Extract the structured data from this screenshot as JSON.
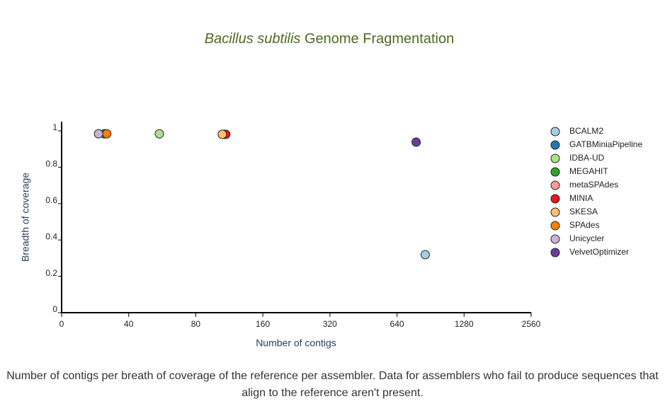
{
  "chart_data": {
    "type": "scatter",
    "title_species": "Bacillus subtilis",
    "title": "Genome Fragmentation",
    "x_label": "Number of contigs",
    "y_label": "Breadth of coverage",
    "x_log_base": 2,
    "xlim": [
      20,
      2560
    ],
    "xticks": [
      {
        "value": 20,
        "label": "0"
      },
      40,
      80,
      160,
      320,
      640,
      1280,
      2560
    ],
    "ylim": [
      0,
      1
    ],
    "yticks": [
      0,
      0.2,
      0.4,
      0.6,
      0.8,
      1
    ],
    "series": [
      {
        "name": "BCALM2",
        "color": "#a6cee3",
        "x": [
          857
        ],
        "values": [
          0.319
        ]
      },
      {
        "name": "GATBMiniaPipeline",
        "color": "#1f78b4",
        "x": [
          31.3
        ],
        "values": [
          0.984
        ]
      },
      {
        "name": "IDBA-UD",
        "color": "#b2df8a",
        "x": [
          54.9
        ],
        "values": [
          0.984
        ]
      },
      {
        "name": "MEGAHIT",
        "color": "#33a02c",
        "x": [
          31
        ],
        "values": [
          0.984
        ]
      },
      {
        "name": "metaSPAdes",
        "color": "#fb9a99",
        "x": [
          107
        ],
        "values": [
          0.981
        ]
      },
      {
        "name": "MINIA",
        "color": "#e31a1c",
        "x": [
          109.1
        ],
        "values": [
          0.981
        ]
      },
      {
        "name": "SKESA",
        "color": "#fdbf6f",
        "x": [
          105.2
        ],
        "values": [
          0.981
        ]
      },
      {
        "name": "SPAdes",
        "color": "#ff7f00",
        "x": [
          31.9
        ],
        "values": [
          0.984
        ]
      },
      {
        "name": "Unicycler",
        "color": "#cab2d6",
        "x": [
          29.3
        ],
        "values": [
          0.984
        ]
      },
      {
        "name": "VelvetOptimizer",
        "color": "#6a3d9a",
        "x": [
          780
        ],
        "values": [
          0.938
        ]
      }
    ]
  },
  "caption": "Number of contigs per breath of coverage of the reference per assembler. Data for assemblers who fail to produce sequences that align to the reference aren't present."
}
